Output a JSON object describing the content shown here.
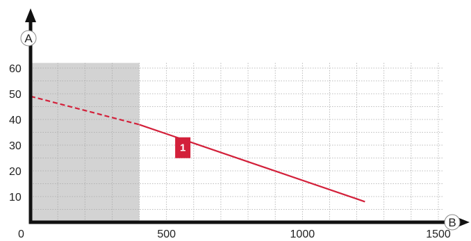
{
  "chart_data": {
    "type": "line",
    "xlabel": "B",
    "ylabel": "A",
    "xlim": [
      0,
      1500
    ],
    "ylim": [
      0,
      62
    ],
    "x_ticks": [
      0,
      500,
      1000,
      1500
    ],
    "y_ticks": [
      10,
      20,
      30,
      40,
      50,
      60
    ],
    "x_tick_labels": [
      "0",
      "500",
      "1000",
      "1500"
    ],
    "y_tick_labels": [
      "10",
      "20",
      "30",
      "40",
      "50",
      "60"
    ],
    "grid": true,
    "shaded_region": {
      "x_from": 0,
      "x_to": 400,
      "color": "#d3d3d3"
    },
    "series": [
      {
        "color": "#d3203a",
        "dashed_segment": {
          "x": [
            0,
            400
          ],
          "y": [
            49,
            38
          ]
        },
        "solid_segment": {
          "x": [
            400,
            1230
          ],
          "y": [
            38,
            8
          ]
        }
      }
    ],
    "annotations": [
      {
        "text": "1",
        "x": 560,
        "y": 29,
        "background": "#d3203a",
        "color": "#ffffff"
      }
    ]
  }
}
